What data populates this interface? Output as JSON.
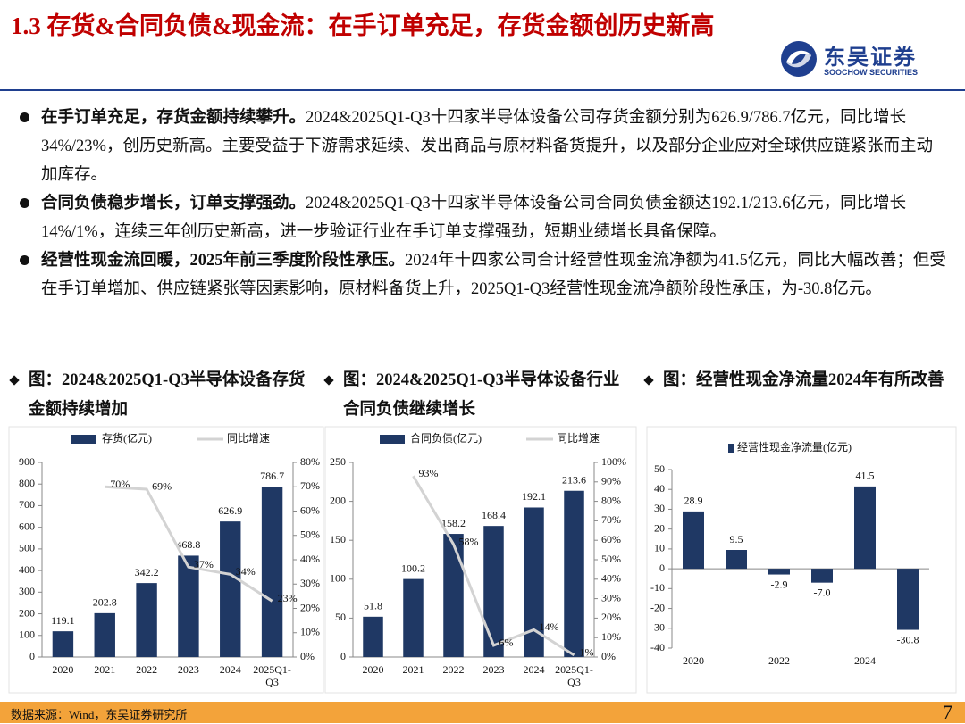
{
  "header": {
    "title": "1.3 存货&合同负债&现金流：在手订单充足，存货金额创历史新高",
    "logo_cn": "东吴证券",
    "logo_en": "SOOCHOW SECURITIES"
  },
  "bullets": [
    {
      "lead": "在手订单充足，存货金额持续攀升。",
      "text": "2024&2025Q1-Q3十四家半导体设备公司存货金额分别为626.9/786.7亿元，同比增长34%/23%，创历史新高。主要受益于下游需求延续、发出商品与原材料备货提升，以及部分企业应对全球供应链紧张而主动加库存。"
    },
    {
      "lead": "合同负债稳步增长，订单支撑强劲。",
      "text": "2024&2025Q1-Q3十四家半导体设备公司合同负债金额达192.1/213.6亿元，同比增长14%/1%，连续三年创历史新高，进一步验证行业在手订单支撑强劲，短期业绩增长具备保障。"
    },
    {
      "lead": "经营性现金流回暖，2025年前三季度阶段性承压。",
      "text": "2024年十四家公司合计经营性现金流净额为41.5亿元，同比大幅改善；但受在手订单增加、供应链紧张等因素影响，原材料备货上升，2025Q1-Q3经营性现金流净额阶段性承压，为-30.8亿元。"
    }
  ],
  "chart_data": [
    {
      "type": "bar",
      "title": "图：2024&2025Q1-Q3半导体设备存货金额持续增加",
      "categories": [
        "2020",
        "2021",
        "2022",
        "2023",
        "2024",
        "2025Q1-Q3"
      ],
      "series": [
        {
          "name": "存货(亿元)",
          "color": "#1f3864",
          "values": [
            119.1,
            202.8,
            342.2,
            468.8,
            626.9,
            786.7
          ]
        },
        {
          "name": "同比增速",
          "type": "line",
          "axis": "y2",
          "color": "#d3d3d3",
          "values": [
            null,
            70,
            69,
            37,
            34,
            23
          ],
          "value_labels": [
            null,
            "70%",
            "69%",
            "37%",
            "34%",
            "23%"
          ]
        }
      ],
      "ylim": [
        0,
        900
      ],
      "yticks": [
        0,
        100,
        200,
        300,
        400,
        500,
        600,
        700,
        800,
        900
      ],
      "y2lim": [
        0,
        80
      ],
      "y2ticks": [
        {
          "value": 0,
          "label": "0%"
        },
        {
          "value": 10,
          "label": "10%"
        },
        {
          "value": 20,
          "label": "20%"
        },
        {
          "value": 30,
          "label": "30%"
        },
        {
          "value": 40,
          "label": "40%"
        },
        {
          "value": 50,
          "label": "50%"
        },
        {
          "value": 60,
          "label": "60%"
        },
        {
          "value": 70,
          "label": "70%"
        },
        {
          "value": 80,
          "label": "80%"
        }
      ]
    },
    {
      "type": "bar",
      "title": "图：2024&2025Q1-Q3半导体设备行业合同负债继续增长",
      "categories": [
        "2020",
        "2021",
        "2022",
        "2023",
        "2024",
        "2025Q1-Q3"
      ],
      "series": [
        {
          "name": "合同负债(亿元)",
          "color": "#1f3864",
          "values": [
            51.8,
            100.2,
            158.2,
            168.4,
            192.1,
            213.6
          ]
        },
        {
          "name": "同比增速",
          "type": "line",
          "axis": "y2",
          "color": "#d3d3d3",
          "values": [
            null,
            93,
            58,
            6,
            14,
            1
          ],
          "value_labels": [
            null,
            "93%",
            "58%",
            "6%",
            "14%",
            "1%"
          ]
        }
      ],
      "ylim": [
        0,
        250
      ],
      "yticks": [
        0,
        50,
        100,
        150,
        200,
        250
      ],
      "y2lim": [
        0,
        100
      ],
      "y2ticks": [
        {
          "value": 0,
          "label": "0%"
        },
        {
          "value": 10,
          "label": "10%"
        },
        {
          "value": 20,
          "label": "20%"
        },
        {
          "value": 30,
          "label": "30%"
        },
        {
          "value": 40,
          "label": "40%"
        },
        {
          "value": 50,
          "label": "50%"
        },
        {
          "value": 60,
          "label": "60%"
        },
        {
          "value": 70,
          "label": "70%"
        },
        {
          "value": 80,
          "label": "80%"
        },
        {
          "value": 90,
          "label": "90%"
        },
        {
          "value": 100,
          "label": "100%"
        }
      ]
    },
    {
      "type": "bar",
      "title": "图：经营性现金净流量2024年有所改善",
      "categories": [
        "2020",
        null,
        "2022",
        null,
        "2024",
        null
      ],
      "series": [
        {
          "name": "经营性现金净流量(亿元)",
          "color": "#1f3864",
          "values": [
            28.9,
            9.5,
            -2.9,
            -7.0,
            41.5,
            -30.8
          ],
          "value_labels": [
            "28.9",
            "9.5",
            "-2.9",
            "-7.0",
            "41.5",
            "-30.8"
          ]
        }
      ],
      "ylim": [
        -40,
        50
      ],
      "yticks": [
        -40,
        -30,
        -20,
        -10,
        0,
        10,
        20,
        30,
        40,
        50
      ]
    }
  ],
  "footer": {
    "source": "数据来源：Wind，东吴证券研究所",
    "page": "7"
  }
}
